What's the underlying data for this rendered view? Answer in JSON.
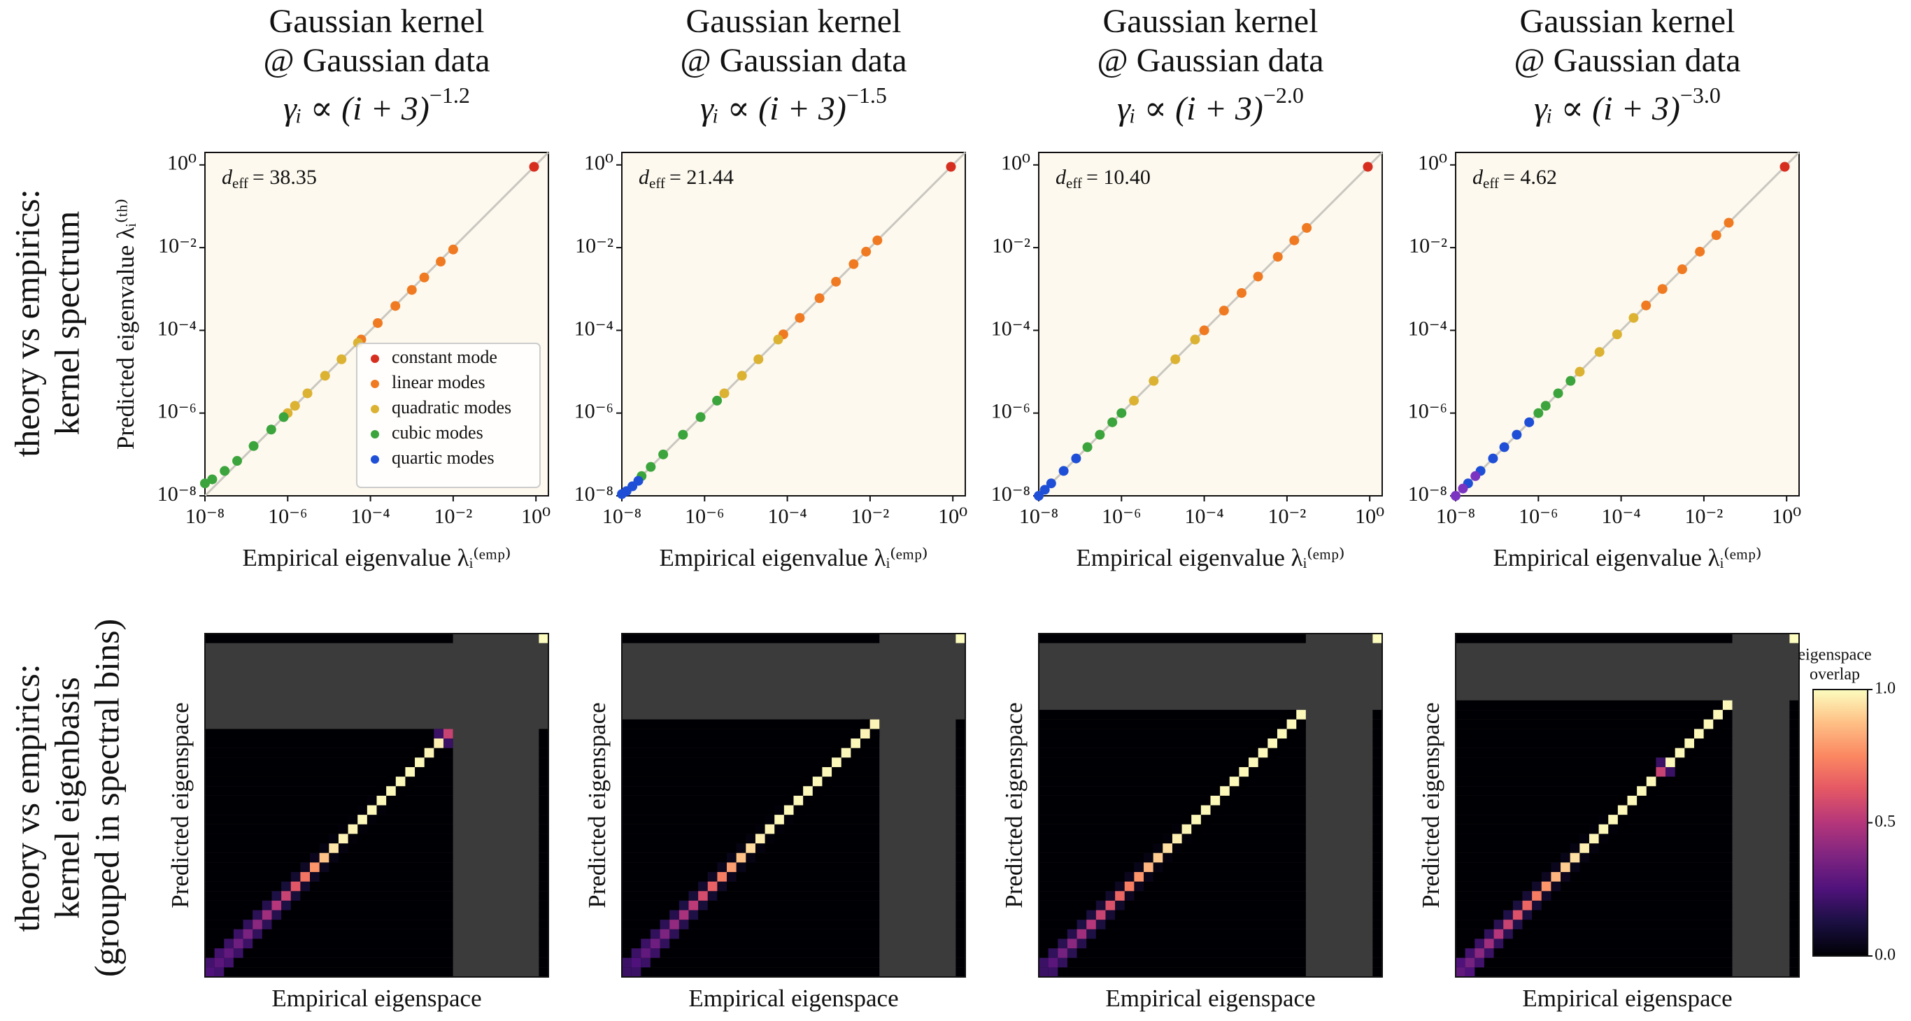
{
  "row_labels": [
    [
      "theory vs empirics:",
      "kernel spectrum"
    ],
    [
      "theory vs empirics:",
      "kernel eigenbasis",
      "(grouped in spectral bins)"
    ]
  ],
  "chart_data": [
    {
      "type": "scatter",
      "title": [
        "Gaussian kernel",
        "@ Gaussian data"
      ],
      "title_formula": "γᵢ ∝ (i + 3)",
      "title_exponent": "−1.2",
      "annotation": {
        "symbol": "d",
        "subscript": "eff",
        "text": "= 38.35"
      },
      "xlabel": "Empirical eigenvalue λᵢ⁽ᵉᵐᵖ⁾",
      "ylabel": "Predicted eigenvalue λᵢ⁽ᵗʰ⁾",
      "log_scale": true,
      "reference_line": true,
      "legend": "lower right",
      "xlim": [
        1e-08,
        2
      ],
      "ylim": [
        1e-08,
        2
      ],
      "xticks": [
        {
          "value": 1e-08,
          "label": "10⁻⁸"
        },
        {
          "value": 1e-06,
          "label": "10⁻⁶"
        },
        {
          "value": 0.0001,
          "label": "10⁻⁴"
        },
        {
          "value": 0.01,
          "label": "10⁻²"
        },
        {
          "value": 1,
          "label": "10⁰"
        }
      ],
      "yticks": [
        {
          "value": 1e-08,
          "label": "10⁻⁸"
        },
        {
          "value": 1e-06,
          "label": "10⁻⁶"
        },
        {
          "value": 0.0001,
          "label": "10⁻⁴"
        },
        {
          "value": 0.01,
          "label": "10⁻²"
        },
        {
          "value": 1,
          "label": "10⁰"
        }
      ],
      "series": [
        {
          "name": "constant mode",
          "color": "#d62f1f",
          "x": [
            0.9
          ],
          "values": [
            0.9
          ]
        },
        {
          "name": "linear modes",
          "color": "#f07a22",
          "x": [
            0.01,
            0.005,
            0.002,
            0.001,
            0.0004,
            0.00015,
            6e-05
          ],
          "values": [
            0.009,
            0.0046,
            0.0019,
            0.00095,
            0.00039,
            0.00015,
            6e-05
          ]
        },
        {
          "name": "quadratic modes",
          "color": "#dcb232",
          "x": [
            5e-05,
            2e-05,
            8e-06,
            3e-06,
            1.5e-06,
            1e-06
          ],
          "values": [
            5e-05,
            2e-05,
            8e-06,
            3e-06,
            1.5e-06,
            1e-06
          ]
        },
        {
          "name": "cubic modes",
          "color": "#3ca43c",
          "x": [
            8e-07,
            4e-07,
            1.5e-07,
            6e-08,
            3e-08,
            1.5e-08,
            1e-08
          ],
          "values": [
            8e-07,
            4e-07,
            1.6e-07,
            7e-08,
            4e-08,
            2.5e-08,
            2e-08
          ]
        },
        {
          "name": "quartic modes",
          "color": "#1f4fd6",
          "x": [],
          "values": []
        }
      ]
    },
    {
      "type": "scatter",
      "title": [
        "Gaussian kernel",
        "@ Gaussian data"
      ],
      "title_formula": "γᵢ ∝ (i + 3)",
      "title_exponent": "−1.5",
      "annotation": {
        "symbol": "d",
        "subscript": "eff",
        "text": "= 21.44"
      },
      "xlabel": "Empirical eigenvalue λᵢ⁽ᵉᵐᵖ⁾",
      "log_scale": true,
      "reference_line": true,
      "xlim": [
        1e-08,
        2
      ],
      "ylim": [
        1e-08,
        2
      ],
      "xticks": [
        {
          "value": 1e-08,
          "label": "10⁻⁸"
        },
        {
          "value": 1e-06,
          "label": "10⁻⁶"
        },
        {
          "value": 0.0001,
          "label": "10⁻⁴"
        },
        {
          "value": 0.01,
          "label": "10⁻²"
        },
        {
          "value": 1,
          "label": "10⁰"
        }
      ],
      "yticks": [
        {
          "value": 1e-08,
          "label": "10⁻⁸"
        },
        {
          "value": 1e-06,
          "label": "10⁻⁶"
        },
        {
          "value": 0.0001,
          "label": "10⁻⁴"
        },
        {
          "value": 0.01,
          "label": "10⁻²"
        },
        {
          "value": 1,
          "label": "10⁰"
        }
      ],
      "series": [
        {
          "color": "#d62f1f",
          "x": [
            0.9
          ],
          "values": [
            0.9
          ]
        },
        {
          "color": "#f07a22",
          "x": [
            0.015,
            0.008,
            0.004,
            0.0015,
            0.0006,
            0.0002,
            8e-05
          ],
          "values": [
            0.015,
            0.008,
            0.004,
            0.0015,
            0.0006,
            0.0002,
            8e-05
          ]
        },
        {
          "color": "#dcb232",
          "x": [
            6e-05,
            2e-05,
            8e-06,
            3e-06
          ],
          "values": [
            6e-05,
            2e-05,
            8e-06,
            3e-06
          ]
        },
        {
          "color": "#3ca43c",
          "x": [
            2e-06,
            8e-07,
            3e-07,
            1e-07,
            5e-08,
            3e-08
          ],
          "values": [
            2e-06,
            8e-07,
            3e-07,
            1e-07,
            5e-08,
            3e-08
          ]
        },
        {
          "color": "#1f4fd6",
          "x": [
            2.5e-08,
            1.8e-08,
            1.3e-08,
            1e-08
          ],
          "values": [
            2.3e-08,
            1.7e-08,
            1.3e-08,
            1.1e-08
          ]
        }
      ]
    },
    {
      "type": "scatter",
      "title": [
        "Gaussian kernel",
        "@ Gaussian data"
      ],
      "title_formula": "γᵢ ∝ (i + 3)",
      "title_exponent": "−2.0",
      "annotation": {
        "symbol": "d",
        "subscript": "eff",
        "text": "= 10.40"
      },
      "xlabel": "Empirical eigenvalue λᵢ⁽ᵉᵐᵖ⁾",
      "log_scale": true,
      "reference_line": true,
      "xlim": [
        1e-08,
        2
      ],
      "ylim": [
        1e-08,
        2
      ],
      "xticks": [
        {
          "value": 1e-08,
          "label": "10⁻⁸"
        },
        {
          "value": 1e-06,
          "label": "10⁻⁶"
        },
        {
          "value": 0.0001,
          "label": "10⁻⁴"
        },
        {
          "value": 0.01,
          "label": "10⁻²"
        },
        {
          "value": 1,
          "label": "10⁰"
        }
      ],
      "yticks": [
        {
          "value": 1e-08,
          "label": "10⁻⁸"
        },
        {
          "value": 1e-06,
          "label": "10⁻⁶"
        },
        {
          "value": 0.0001,
          "label": "10⁻⁴"
        },
        {
          "value": 0.01,
          "label": "10⁻²"
        },
        {
          "value": 1,
          "label": "10⁰"
        }
      ],
      "series": [
        {
          "color": "#d62f1f",
          "x": [
            0.9
          ],
          "values": [
            0.9
          ]
        },
        {
          "color": "#f07a22",
          "x": [
            0.03,
            0.015,
            0.006,
            0.002,
            0.0008,
            0.0003,
            0.0001
          ],
          "values": [
            0.03,
            0.015,
            0.006,
            0.002,
            0.0008,
            0.0003,
            0.0001
          ]
        },
        {
          "color": "#dcb232",
          "x": [
            6e-05,
            2e-05,
            6e-06,
            2e-06
          ],
          "values": [
            6e-05,
            2e-05,
            6e-06,
            2e-06
          ]
        },
        {
          "color": "#3ca43c",
          "x": [
            1e-06,
            6e-07,
            3e-07,
            1.5e-07
          ],
          "values": [
            1e-06,
            6e-07,
            3e-07,
            1.5e-07
          ]
        },
        {
          "color": "#1f4fd6",
          "x": [
            8e-08,
            4e-08,
            2e-08,
            1.4e-08,
            1e-08
          ],
          "values": [
            8e-08,
            4e-08,
            2e-08,
            1.4e-08,
            1e-08
          ]
        }
      ]
    },
    {
      "type": "scatter",
      "title": [
        "Gaussian kernel",
        "@ Gaussian data"
      ],
      "title_formula": "γᵢ ∝ (i + 3)",
      "title_exponent": "−3.0",
      "annotation": {
        "symbol": "d",
        "subscript": "eff",
        "text": "= 4.62"
      },
      "xlabel": "Empirical eigenvalue λᵢ⁽ᵉᵐᵖ⁾",
      "log_scale": true,
      "reference_line": true,
      "xlim": [
        1e-08,
        2
      ],
      "ylim": [
        1e-08,
        2
      ],
      "xticks": [
        {
          "value": 1e-08,
          "label": "10⁻⁸"
        },
        {
          "value": 1e-06,
          "label": "10⁻⁶"
        },
        {
          "value": 0.0001,
          "label": "10⁻⁴"
        },
        {
          "value": 0.01,
          "label": "10⁻²"
        },
        {
          "value": 1,
          "label": "10⁰"
        }
      ],
      "yticks": [
        {
          "value": 1e-08,
          "label": "10⁻⁸"
        },
        {
          "value": 1e-06,
          "label": "10⁻⁶"
        },
        {
          "value": 0.0001,
          "label": "10⁻⁴"
        },
        {
          "value": 0.01,
          "label": "10⁻²"
        },
        {
          "value": 1,
          "label": "10⁰"
        }
      ],
      "series": [
        {
          "color": "#d62f1f",
          "x": [
            0.9
          ],
          "values": [
            0.9
          ]
        },
        {
          "color": "#f07a22",
          "x": [
            0.04,
            0.02,
            0.008,
            0.003,
            0.001,
            0.0004
          ],
          "values": [
            0.04,
            0.02,
            0.008,
            0.003,
            0.001,
            0.0004
          ]
        },
        {
          "color": "#dcb232",
          "x": [
            0.0002,
            8e-05,
            3e-05,
            1e-05
          ],
          "values": [
            0.0002,
            8e-05,
            3e-05,
            1e-05
          ]
        },
        {
          "color": "#3ca43c",
          "x": [
            6e-06,
            3e-06,
            1.5e-06,
            1e-06
          ],
          "values": [
            6e-06,
            3e-06,
            1.5e-06,
            1e-06
          ]
        },
        {
          "color": "#1f4fd6",
          "x": [
            6e-07,
            3e-07,
            1.5e-07,
            8e-08,
            4e-08,
            2e-08
          ],
          "values": [
            6e-07,
            3e-07,
            1.5e-07,
            8e-08,
            4e-08,
            2e-08
          ]
        },
        {
          "color": "#7b34c2",
          "x": [
            3e-08,
            1.5e-08,
            1e-08
          ],
          "values": [
            3e-08,
            1.5e-08,
            1e-08
          ]
        }
      ]
    },
    {
      "type": "heatmap",
      "xlabel": "Empirical eigenspace",
      "ylabel": "Predicted eigenspace",
      "clim": [
        0,
        1
      ],
      "colormap": "magma",
      "diagonal": [
        0.25,
        0.28,
        0.3,
        0.33,
        0.36,
        0.4,
        0.45,
        0.5,
        0.55,
        0.62,
        0.7,
        0.78,
        0.88,
        0.95,
        0.98,
        0.98,
        0.99,
        0.99,
        0.99,
        0.99,
        0.99,
        0.99,
        0.99,
        0.98,
        0.97,
        0.55,
        null,
        null,
        null,
        null,
        null,
        null,
        null,
        null,
        null,
        1.0
      ],
      "off_diagonal": [
        0.22,
        0.22,
        0.2,
        0.2,
        0.18,
        0.17,
        0.15,
        0.13,
        0.11,
        0.09,
        0.07,
        0.05,
        0.03,
        0.02,
        0.01,
        0.01,
        0.01,
        0.01,
        0,
        0,
        0,
        0,
        0,
        0,
        0.2,
        null,
        null,
        null,
        null,
        null,
        null,
        null,
        null,
        null,
        null
      ]
    },
    {
      "type": "heatmap",
      "xlabel": "Empirical eigenspace",
      "ylabel": "Predicted eigenspace",
      "clim": [
        0,
        1
      ],
      "colormap": "magma",
      "diagonal": [
        0.2,
        0.25,
        0.3,
        0.33,
        0.37,
        0.42,
        0.47,
        0.52,
        0.58,
        0.65,
        0.72,
        0.8,
        0.88,
        0.93,
        0.97,
        0.98,
        0.99,
        0.99,
        0.99,
        0.99,
        0.99,
        0.99,
        0.99,
        0.99,
        0.99,
        0.98,
        0.98,
        null,
        null,
        null,
        null,
        null,
        null,
        null,
        null,
        1.0
      ],
      "off_diagonal": [
        0.2,
        0.2,
        0.2,
        0.18,
        0.17,
        0.15,
        0.13,
        0.11,
        0.09,
        0.07,
        0.05,
        0.04,
        0.03,
        0.02,
        0.01,
        0.01,
        0.01,
        0,
        0,
        0,
        0,
        0,
        0,
        0,
        0,
        0,
        null,
        null,
        null,
        null,
        null,
        null,
        null,
        null,
        null
      ]
    },
    {
      "type": "heatmap",
      "xlabel": "Empirical eigenspace",
      "ylabel": "Predicted eigenspace",
      "clim": [
        0,
        1
      ],
      "colormap": "magma",
      "diagonal": [
        0.2,
        0.28,
        0.35,
        0.4,
        0.45,
        0.5,
        0.55,
        0.6,
        0.66,
        0.72,
        0.78,
        0.85,
        0.9,
        0.94,
        0.97,
        0.98,
        0.99,
        0.99,
        0.99,
        0.99,
        0.99,
        0.99,
        0.99,
        0.99,
        0.99,
        0.99,
        0.99,
        0.99,
        null,
        null,
        null,
        null,
        null,
        null,
        null,
        1.0
      ],
      "off_diagonal": [
        0.2,
        0.18,
        0.16,
        0.15,
        0.13,
        0.12,
        0.1,
        0.08,
        0.06,
        0.05,
        0.04,
        0.03,
        0.02,
        0.01,
        0.01,
        0,
        0,
        0,
        0,
        0,
        0,
        0,
        0,
        0,
        0,
        0,
        0,
        null,
        null,
        null,
        null,
        null,
        null,
        null,
        null
      ]
    },
    {
      "type": "heatmap",
      "xlabel": "Empirical eigenspace",
      "ylabel": "Predicted eigenspace",
      "clim": [
        0,
        1
      ],
      "colormap": "magma",
      "diagonal": [
        0.3,
        0.35,
        0.4,
        0.45,
        0.5,
        0.55,
        0.6,
        0.66,
        0.72,
        0.78,
        0.85,
        0.9,
        0.94,
        0.97,
        0.98,
        0.99,
        0.99,
        0.99,
        0.99,
        0.99,
        0.99,
        0.55,
        0.99,
        0.99,
        0.99,
        0.99,
        0.99,
        0.99,
        0.99,
        null,
        null,
        null,
        null,
        null,
        null,
        1.0
      ],
      "off_diagonal": [
        0.25,
        0.22,
        0.2,
        0.18,
        0.16,
        0.14,
        0.12,
        0.1,
        0.08,
        0.06,
        0.05,
        0.04,
        0.03,
        0.02,
        0.01,
        0.01,
        0,
        0,
        0,
        0,
        0,
        0.2,
        0,
        0,
        0,
        0,
        0,
        0,
        null,
        null,
        null,
        null,
        null,
        null,
        null
      ],
      "colorbar": {
        "label": [
          "eigenspace",
          "overlap"
        ],
        "ticks": [
          {
            "value": 0,
            "label": "0.0"
          },
          {
            "value": 0.5,
            "label": "0.5"
          },
          {
            "value": 1,
            "label": "1.0"
          }
        ]
      }
    }
  ]
}
